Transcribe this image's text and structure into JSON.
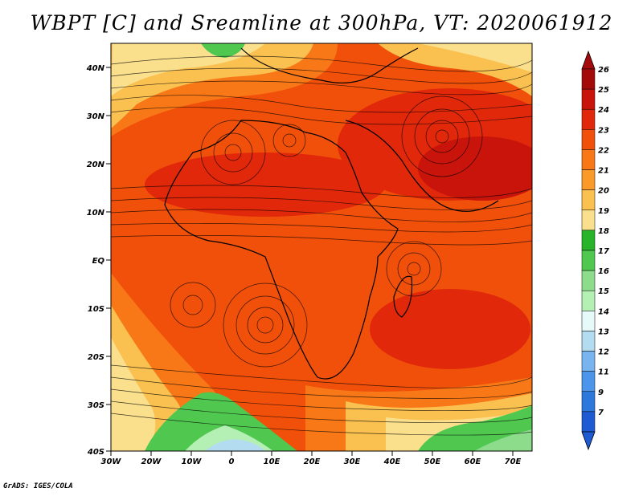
{
  "title": "WBPT [C] and Sreamline at 300hPa, VT: 2020061912",
  "footer": "GrADS: IGES/COLA",
  "lat_labels": [
    "40N",
    "30N",
    "20N",
    "10N",
    "EQ",
    "10S",
    "20S",
    "30S",
    "40S"
  ],
  "lon_labels": [
    "30W",
    "20W",
    "10W",
    "0",
    "10E",
    "20E",
    "30E",
    "40E",
    "50E",
    "60E",
    "70E"
  ],
  "colorbar": {
    "labels": [
      "26",
      "25",
      "24",
      "23",
      "22",
      "21",
      "20",
      "19",
      "18",
      "17",
      "16",
      "15",
      "14",
      "13",
      "12",
      "11",
      "9",
      "7"
    ],
    "colors": [
      "#a50a0a",
      "#c8140a",
      "#e1280a",
      "#f0500a",
      "#f87818",
      "#fa9a2a",
      "#fac050",
      "#fae08c",
      "#28b428",
      "#50c850",
      "#8cdc8c",
      "#b4f0b4",
      "#e6fafa",
      "#b4dcf0",
      "#78b4f0",
      "#4b96eb",
      "#2d78dc",
      "#1e5ad2"
    ]
  },
  "map": {
    "extent": {
      "lon": [
        -30,
        75
      ],
      "lat": [
        -40,
        45
      ]
    },
    "field": "wet-bulb potential temperature",
    "dominant_range_C": [
      22,
      25
    ]
  }
}
